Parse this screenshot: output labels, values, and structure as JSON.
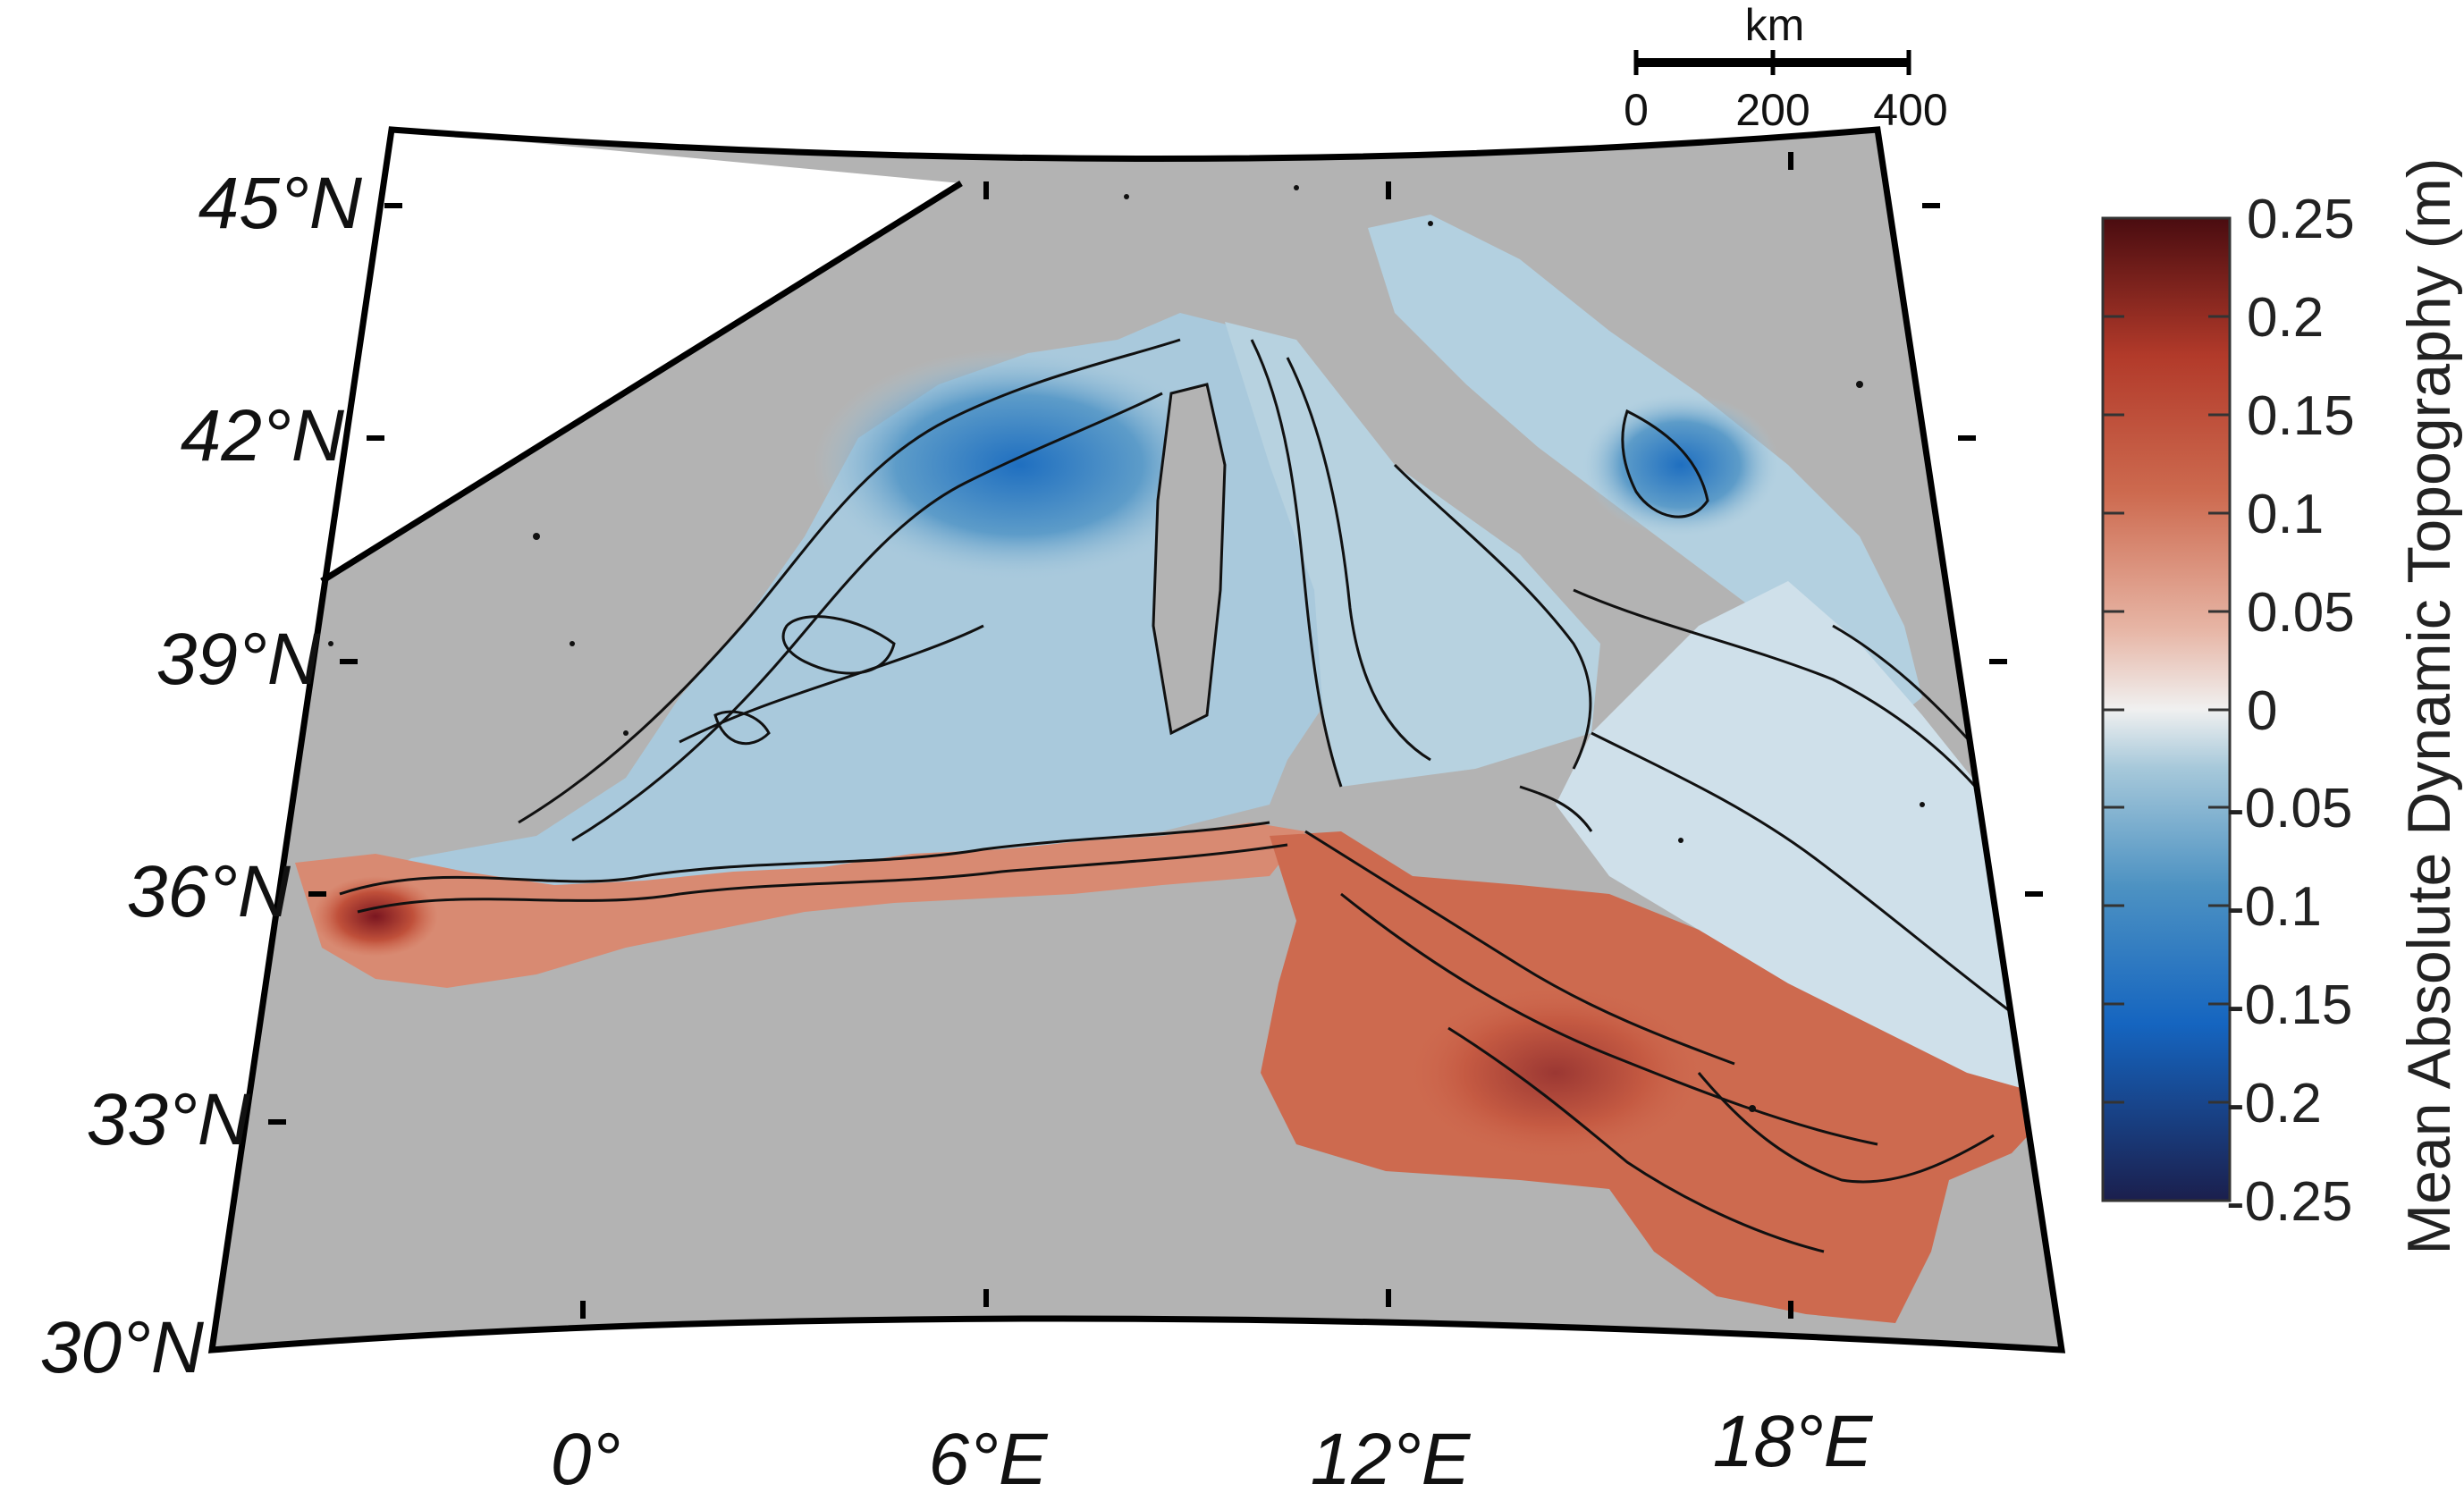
{
  "map": {
    "projection": "conic",
    "land_color": "#b3b3b3",
    "ocean_fill": "diverging-rdbu",
    "lat_labels": [
      "45°N",
      "42°N",
      "39°N",
      "36°N",
      "33°N",
      "30°N"
    ],
    "lon_labels": [
      "0°",
      "6°E",
      "12°E",
      "18°E"
    ]
  },
  "scale_bar": {
    "unit": "km",
    "ticks": [
      "0",
      "200",
      "400"
    ]
  },
  "colorbar": {
    "title": "Mean Absolute Dynamic Topography (m)",
    "ticks": [
      "0.25",
      "0.2",
      "0.15",
      "0.1",
      "0.05",
      "0",
      "-0.05",
      "-0.1",
      "-0.15",
      "-0.2",
      "-0.25"
    ],
    "min": -0.25,
    "max": 0.25,
    "colors": [
      "#1b1f4d",
      "#1565c0",
      "#4d92c2",
      "#a6c8da",
      "#f0f0f0",
      "#e7b6a6",
      "#cd6a4f",
      "#b23a2a",
      "#4a0c10"
    ]
  }
}
